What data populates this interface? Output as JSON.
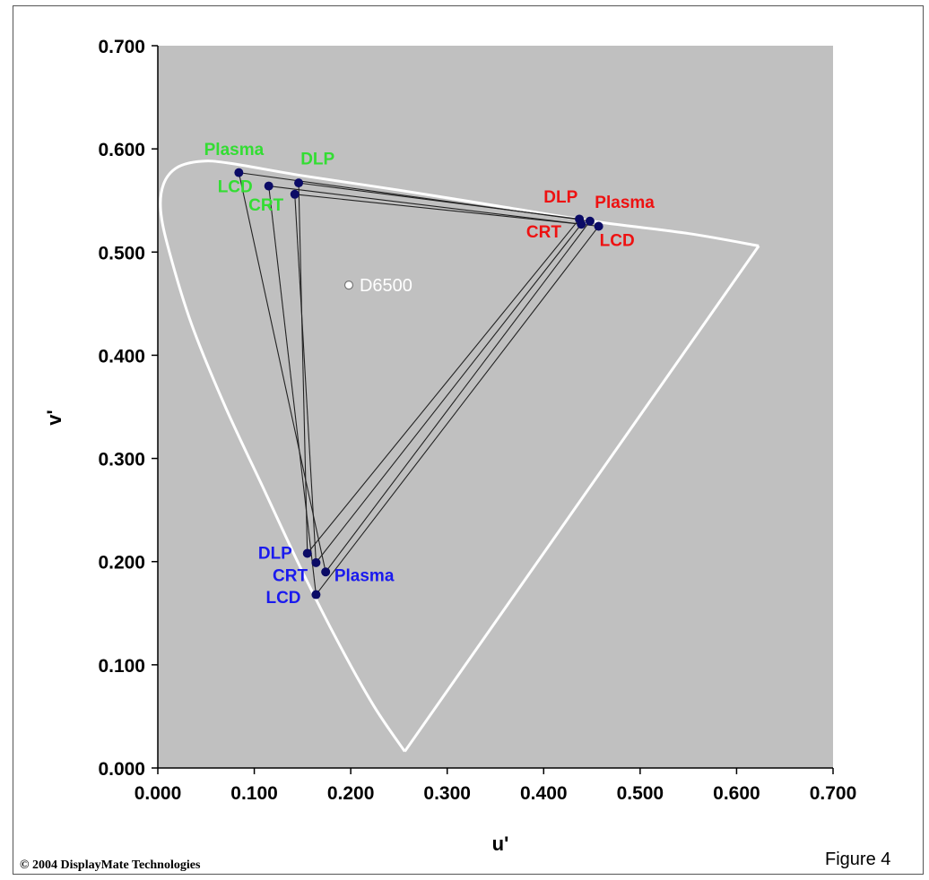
{
  "figure_label": "Figure 4",
  "copyright": "© 2004 DisplayMate Technologies",
  "chart_data": {
    "type": "scatter",
    "title": "",
    "xlabel": "u'",
    "ylabel": "v'",
    "xlim": [
      0,
      0.7
    ],
    "ylim": [
      0,
      0.7
    ],
    "x_ticks": [
      "0.000",
      "0.100",
      "0.200",
      "0.300",
      "0.400",
      "0.500",
      "0.600",
      "0.700"
    ],
    "y_ticks": [
      "0.000",
      "0.100",
      "0.200",
      "0.300",
      "0.400",
      "0.500",
      "0.600",
      "0.700"
    ],
    "grid": false,
    "colors": {
      "plot_bg": "#c0c0c0",
      "locus": "#ffffff",
      "green_label": "#33dd33",
      "red_label": "#ee1111",
      "blue_label": "#1a1aee",
      "point": "#0b0b66",
      "gamut_line": "#222222",
      "white_point_label": "#ffffff"
    },
    "spectral_locus": [
      [
        0.256,
        0.016
      ],
      [
        0.224,
        0.06
      ],
      [
        0.188,
        0.12
      ],
      [
        0.15,
        0.19
      ],
      [
        0.11,
        0.27
      ],
      [
        0.07,
        0.35
      ],
      [
        0.035,
        0.43
      ],
      [
        0.012,
        0.5
      ],
      [
        0.003,
        0.54
      ],
      [
        0.006,
        0.566
      ],
      [
        0.02,
        0.582
      ],
      [
        0.045,
        0.588
      ],
      [
        0.075,
        0.586
      ],
      [
        0.15,
        0.574
      ],
      [
        0.25,
        0.56
      ],
      [
        0.35,
        0.545
      ],
      [
        0.45,
        0.53
      ],
      [
        0.55,
        0.518
      ],
      [
        0.623,
        0.506
      ]
    ],
    "purple_line": [
      [
        0.623,
        0.506
      ],
      [
        0.256,
        0.016
      ]
    ],
    "series": [
      {
        "name": "Plasma",
        "red": [
          0.448,
          0.53
        ],
        "green": [
          0.084,
          0.577
        ],
        "blue": [
          0.174,
          0.19
        ]
      },
      {
        "name": "DLP",
        "red": [
          0.437,
          0.532
        ],
        "green": [
          0.146,
          0.567
        ],
        "blue": [
          0.155,
          0.208
        ]
      },
      {
        "name": "CRT",
        "red": [
          0.439,
          0.527
        ],
        "green": [
          0.142,
          0.556
        ],
        "blue": [
          0.164,
          0.199
        ]
      },
      {
        "name": "LCD",
        "red": [
          0.457,
          0.525
        ],
        "green": [
          0.115,
          0.564
        ],
        "blue": [
          0.164,
          0.168
        ]
      }
    ],
    "labels": [
      {
        "text": "Plasma",
        "color": "green",
        "at": [
          0.048,
          0.594
        ]
      },
      {
        "text": "DLP",
        "color": "green",
        "at": [
          0.148,
          0.585
        ]
      },
      {
        "text": "LCD",
        "color": "green",
        "at": [
          0.062,
          0.558
        ]
      },
      {
        "text": "CRT",
        "color": "green",
        "at": [
          0.094,
          0.54
        ]
      },
      {
        "text": "DLP",
        "color": "red",
        "at": [
          0.4,
          0.548
        ]
      },
      {
        "text": "Plasma",
        "color": "red",
        "at": [
          0.453,
          0.543
        ]
      },
      {
        "text": "CRT",
        "color": "red",
        "at": [
          0.382,
          0.514
        ]
      },
      {
        "text": "LCD",
        "color": "red",
        "at": [
          0.458,
          0.506
        ]
      },
      {
        "text": "DLP",
        "color": "blue",
        "at": [
          0.104,
          0.203
        ]
      },
      {
        "text": "CRT",
        "color": "blue",
        "at": [
          0.119,
          0.181
        ]
      },
      {
        "text": "Plasma",
        "color": "blue",
        "at": [
          0.183,
          0.181
        ]
      },
      {
        "text": "LCD",
        "color": "blue",
        "at": [
          0.112,
          0.16
        ]
      }
    ],
    "white_point": {
      "label": "D6500",
      "u": 0.198,
      "v": 0.468
    }
  }
}
